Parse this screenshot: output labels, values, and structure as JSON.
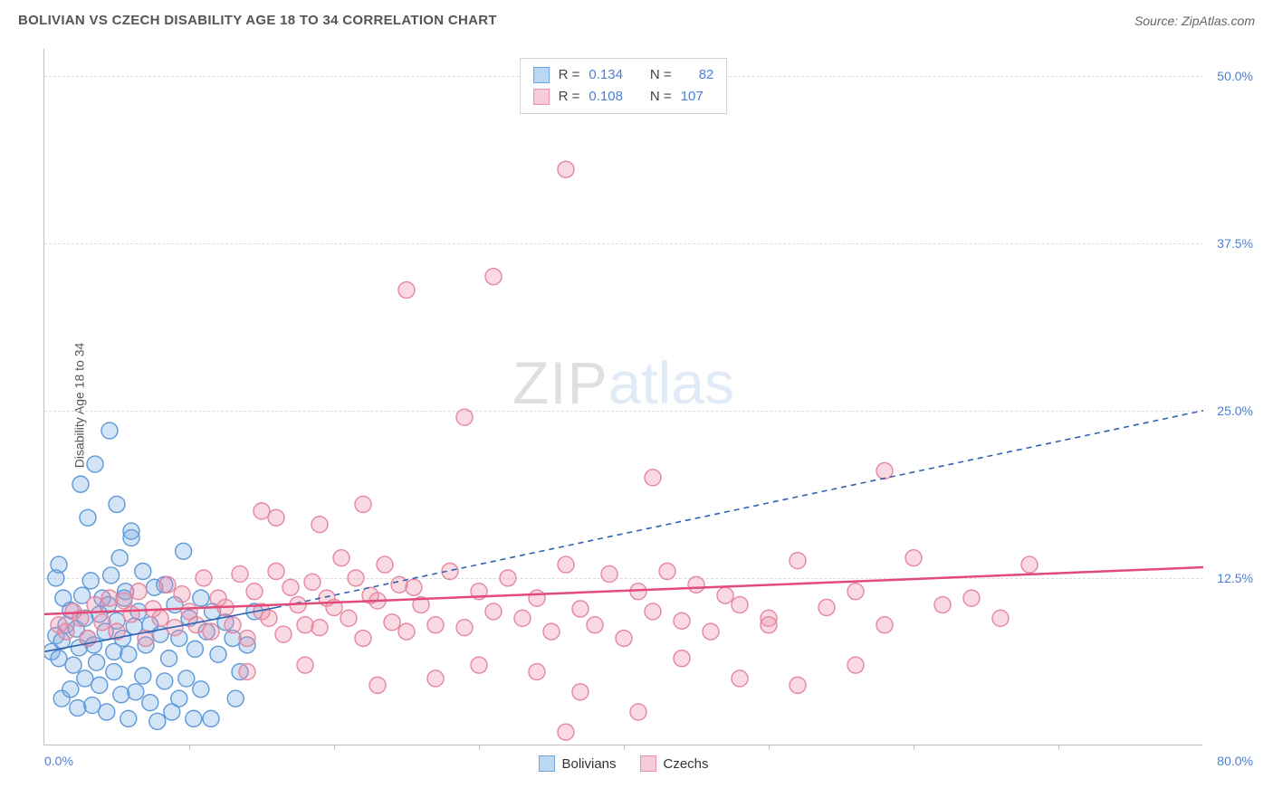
{
  "header": {
    "title": "BOLIVIAN VS CZECH DISABILITY AGE 18 TO 34 CORRELATION CHART",
    "source": "Source: ZipAtlas.com"
  },
  "chart": {
    "type": "scatter",
    "yaxis_label": "Disability Age 18 to 34",
    "xlim": [
      0,
      80
    ],
    "ylim": [
      0,
      52
    ],
    "xlabel_min": "0.0%",
    "xlabel_max": "80.0%",
    "xtick_step": 10,
    "grid_color": "#dcdcdc",
    "axis_color": "#c0c0c0",
    "background_color": "#ffffff",
    "yticks": [
      {
        "v": 12.5,
        "label": "12.5%"
      },
      {
        "v": 25.0,
        "label": "25.0%"
      },
      {
        "v": 37.5,
        "label": "37.5%"
      },
      {
        "v": 50.0,
        "label": "50.0%"
      }
    ],
    "watermark": {
      "part1": "ZIP",
      "part2": "atlas"
    },
    "marker_radius": 9,
    "marker_stroke_width": 1.4,
    "series": {
      "bolivians": {
        "label": "Bolivians",
        "fill": "rgba(120,170,230,0.32)",
        "stroke": "#5d98d8",
        "swatch_fill": "#bcd7f2",
        "swatch_border": "#6ea2de",
        "R": "0.134",
        "N": "82",
        "trend": {
          "x1": 0,
          "y1": 7.0,
          "x2": 16,
          "y2": 10.3,
          "x3": 80,
          "y3": 25.0,
          "color": "#2d62b0",
          "dash": "6,5",
          "width": 1.6,
          "solid_until": 16
        },
        "points": [
          [
            0.5,
            7
          ],
          [
            0.8,
            8.2
          ],
          [
            1,
            6.5
          ],
          [
            1.2,
            7.8
          ],
          [
            1.5,
            9
          ],
          [
            1.8,
            10.1
          ],
          [
            2,
            6
          ],
          [
            2.2,
            8.7
          ],
          [
            2.4,
            7.3
          ],
          [
            2.6,
            11.2
          ],
          [
            2.8,
            9.5
          ],
          [
            3,
            8
          ],
          [
            3.2,
            12.3
          ],
          [
            3.4,
            7.5
          ],
          [
            3.6,
            6.2
          ],
          [
            3.8,
            9.8
          ],
          [
            4,
            11
          ],
          [
            4.2,
            8.5
          ],
          [
            4.4,
            10.5
          ],
          [
            4.6,
            12.7
          ],
          [
            4.8,
            7
          ],
          [
            5,
            9.3
          ],
          [
            5.2,
            14
          ],
          [
            5.4,
            8
          ],
          [
            5.6,
            11.5
          ],
          [
            5.8,
            6.8
          ],
          [
            6,
            15.5
          ],
          [
            6.2,
            8.9
          ],
          [
            6.5,
            10
          ],
          [
            6.8,
            13
          ],
          [
            7,
            7.5
          ],
          [
            7.3,
            9
          ],
          [
            7.6,
            11.8
          ],
          [
            8,
            8.3
          ],
          [
            8.3,
            12
          ],
          [
            8.6,
            6.5
          ],
          [
            9,
            10.5
          ],
          [
            9.3,
            8
          ],
          [
            9.6,
            14.5
          ],
          [
            10,
            9.5
          ],
          [
            10.4,
            7.2
          ],
          [
            10.8,
            11
          ],
          [
            11.2,
            8.5
          ],
          [
            11.6,
            10
          ],
          [
            12,
            6.8
          ],
          [
            12.5,
            9.2
          ],
          [
            13,
            8
          ],
          [
            13.5,
            5.5
          ],
          [
            14,
            7.5
          ],
          [
            14.5,
            10
          ],
          [
            1.2,
            3.5
          ],
          [
            1.8,
            4.2
          ],
          [
            2.3,
            2.8
          ],
          [
            2.8,
            5
          ],
          [
            3.3,
            3
          ],
          [
            3.8,
            4.5
          ],
          [
            4.3,
            2.5
          ],
          [
            4.8,
            5.5
          ],
          [
            5.3,
            3.8
          ],
          [
            5.8,
            2
          ],
          [
            6.3,
            4
          ],
          [
            6.8,
            5.2
          ],
          [
            7.3,
            3.2
          ],
          [
            7.8,
            1.8
          ],
          [
            8.3,
            4.8
          ],
          [
            8.8,
            2.5
          ],
          [
            9.3,
            3.5
          ],
          [
            9.8,
            5
          ],
          [
            10.3,
            2
          ],
          [
            10.8,
            4.2
          ],
          [
            0.8,
            12.5
          ],
          [
            1.3,
            11
          ],
          [
            4.5,
            23.5
          ],
          [
            5,
            18
          ],
          [
            3,
            17
          ],
          [
            2.5,
            19.5
          ],
          [
            1,
            13.5
          ],
          [
            6,
            16
          ],
          [
            3.5,
            21
          ],
          [
            5.5,
            11
          ],
          [
            11.5,
            2
          ],
          [
            13.2,
            3.5
          ]
        ]
      },
      "czechs": {
        "label": "Czechs",
        "fill": "rgba(235,140,165,0.32)",
        "stroke": "#e685a0",
        "swatch_fill": "#f6ccd8",
        "swatch_border": "#ea90ab",
        "R": "0.108",
        "N": "107",
        "trend": {
          "x1": 0,
          "y1": 9.8,
          "x2": 80,
          "y2": 13.3,
          "color": "#e24a7a",
          "width": 2.5
        },
        "points": [
          [
            1,
            9
          ],
          [
            1.5,
            8.5
          ],
          [
            2,
            10
          ],
          [
            2.5,
            9.5
          ],
          [
            3,
            8
          ],
          [
            3.5,
            10.5
          ],
          [
            4,
            9.2
          ],
          [
            4.5,
            11
          ],
          [
            5,
            8.5
          ],
          [
            5.5,
            10.8
          ],
          [
            6,
            9.8
          ],
          [
            6.5,
            11.5
          ],
          [
            7,
            8
          ],
          [
            7.5,
            10.2
          ],
          [
            8,
            9.5
          ],
          [
            8.5,
            12
          ],
          [
            9,
            8.8
          ],
          [
            9.5,
            11.3
          ],
          [
            10,
            10
          ],
          [
            10.5,
            9
          ],
          [
            11,
            12.5
          ],
          [
            11.5,
            8.5
          ],
          [
            12,
            11
          ],
          [
            12.5,
            10.3
          ],
          [
            13,
            9
          ],
          [
            13.5,
            12.8
          ],
          [
            14,
            8
          ],
          [
            14.5,
            11.5
          ],
          [
            15,
            10
          ],
          [
            15.5,
            9.5
          ],
          [
            16,
            13
          ],
          [
            16.5,
            8.3
          ],
          [
            17,
            11.8
          ],
          [
            17.5,
            10.5
          ],
          [
            18,
            9
          ],
          [
            18.5,
            12.2
          ],
          [
            19,
            8.8
          ],
          [
            19.5,
            11
          ],
          [
            20,
            10.3
          ],
          [
            20.5,
            14
          ],
          [
            21,
            9.5
          ],
          [
            21.5,
            12.5
          ],
          [
            22,
            8
          ],
          [
            22.5,
            11.2
          ],
          [
            23,
            10.8
          ],
          [
            23.5,
            13.5
          ],
          [
            24,
            9.2
          ],
          [
            24.5,
            12
          ],
          [
            25,
            8.5
          ],
          [
            25.5,
            11.8
          ],
          [
            26,
            10.5
          ],
          [
            27,
            9
          ],
          [
            28,
            13
          ],
          [
            29,
            8.8
          ],
          [
            30,
            11.5
          ],
          [
            31,
            10
          ],
          [
            32,
            12.5
          ],
          [
            33,
            9.5
          ],
          [
            34,
            11
          ],
          [
            35,
            8.5
          ],
          [
            36,
            13.5
          ],
          [
            37,
            10.2
          ],
          [
            38,
            9
          ],
          [
            39,
            12.8
          ],
          [
            40,
            8
          ],
          [
            41,
            11.5
          ],
          [
            42,
            10
          ],
          [
            43,
            13
          ],
          [
            44,
            9.3
          ],
          [
            45,
            12
          ],
          [
            46,
            8.5
          ],
          [
            47,
            11.2
          ],
          [
            48,
            10.5
          ],
          [
            50,
            9
          ],
          [
            52,
            13.8
          ],
          [
            54,
            10.3
          ],
          [
            56,
            11.5
          ],
          [
            58,
            9
          ],
          [
            60,
            14
          ],
          [
            62,
            10.5
          ],
          [
            64,
            11
          ],
          [
            66,
            9.5
          ],
          [
            16,
            17
          ],
          [
            19,
            16.5
          ],
          [
            22,
            18
          ],
          [
            15,
            17.5
          ],
          [
            36,
            1
          ],
          [
            41,
            2.5
          ],
          [
            27,
            5
          ],
          [
            30,
            6
          ],
          [
            34,
            5.5
          ],
          [
            37,
            4
          ],
          [
            44,
            6.5
          ],
          [
            48,
            5
          ],
          [
            52,
            4.5
          ],
          [
            56,
            6
          ],
          [
            42,
            20
          ],
          [
            58,
            20.5
          ],
          [
            29,
            24.5
          ],
          [
            25,
            34
          ],
          [
            31,
            35
          ],
          [
            36,
            43
          ],
          [
            68,
            13.5
          ],
          [
            50,
            9.5
          ],
          [
            18,
            6
          ],
          [
            23,
            4.5
          ],
          [
            14,
            5.5
          ]
        ]
      }
    }
  }
}
